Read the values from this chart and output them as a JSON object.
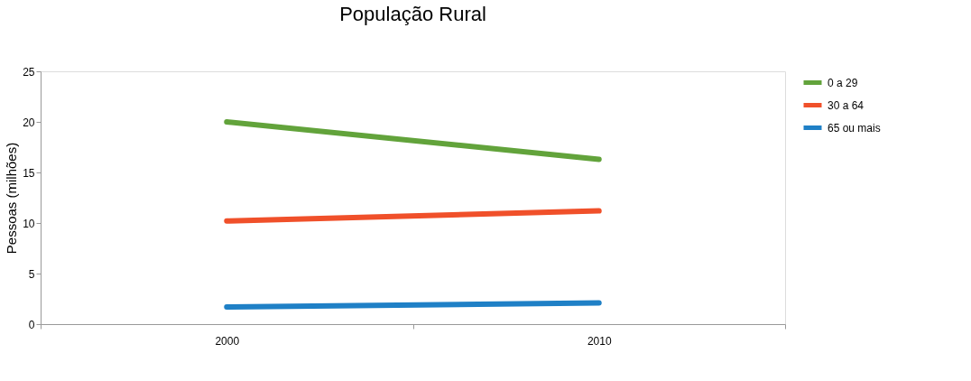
{
  "chart_data": {
    "type": "line",
    "title": "População Rural",
    "ylabel": "Pessoas (milhões)",
    "categories": [
      "2000",
      "2010"
    ],
    "series": [
      {
        "name": "0 a 29",
        "color": "#62a33b",
        "values": [
          20.0,
          16.3
        ]
      },
      {
        "name": "30 a 64",
        "color": "#f0502a",
        "values": [
          10.2,
          11.2
        ]
      },
      {
        "name": "65 ou mais",
        "color": "#1f80c6",
        "values": [
          1.7,
          2.1
        ]
      }
    ],
    "ylim": [
      0,
      25
    ],
    "yticks": [
      0,
      5,
      10,
      15,
      20,
      25
    ],
    "grid": false,
    "legend": "right",
    "marker": "none",
    "line_style": "solid"
  }
}
